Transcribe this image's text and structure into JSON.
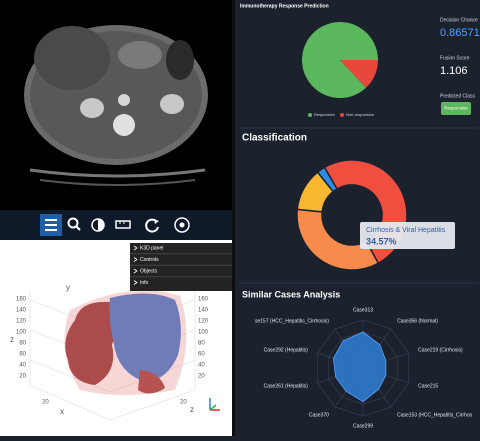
{
  "plot3d": {
    "menu": [
      "K3D panel",
      "Controls",
      "Objects",
      "Info"
    ],
    "axis_y": "y",
    "axis_x": "x",
    "axis_z_left": "z",
    "axis_z_right": "z",
    "left_ticks": [
      160,
      140,
      120,
      100,
      80,
      60,
      40,
      20
    ],
    "right_ticks": [
      160,
      140,
      120,
      100,
      80,
      60,
      40,
      20
    ],
    "bottom_ticks": [
      20,
      20
    ]
  },
  "prediction": {
    "decision_chance_label": "Decision Chance",
    "decision_chance": 0.865715,
    "fusion_score_label": "Fusion Score",
    "fusion_score": 1.106,
    "predicted_class_label": "Predicted Class",
    "predicted_class": "Responsive"
  },
  "chart_data": [
    {
      "type": "pie",
      "title": "Immunotherapy Response Prediction",
      "categories": [
        "Responsive",
        "Non-responsive"
      ],
      "values": [
        87,
        13
      ],
      "colors": [
        "#5cb85c",
        "#e8473b"
      ]
    },
    {
      "type": "donut",
      "title": "Classification",
      "categories": [
        null,
        "Cirrhosis & Viral Hepatitis",
        null,
        null
      ],
      "values": [
        50.4,
        34.57,
        12.6,
        2.43
      ],
      "value_labels": [
        null,
        "34.57%",
        null,
        null
      ],
      "colors": [
        "#f04e3e",
        "#f68b4c",
        "#f7b731",
        "#2d8ce8"
      ]
    },
    {
      "type": "radar",
      "title": "Similar Cases Analysis",
      "categories": [
        "Case313",
        "Case356 (Normal)",
        "Case219 (Cirrhosis)",
        "Case215",
        "Case153 (HCC_Hepatitis_Cirrhos",
        "Case299",
        "Case370",
        "Case261 (Hepatitis)",
        "Case292 (Hepatitis)",
        "se157 (HCC_Hepatitis_Cirrhosis)"
      ],
      "values": [
        0.75,
        0.6,
        0.5,
        0.5,
        0.55,
        0.7,
        0.6,
        0.6,
        0.65,
        0.7
      ],
      "rlim": [
        0,
        1
      ],
      "color": "#2f7fd6"
    }
  ]
}
